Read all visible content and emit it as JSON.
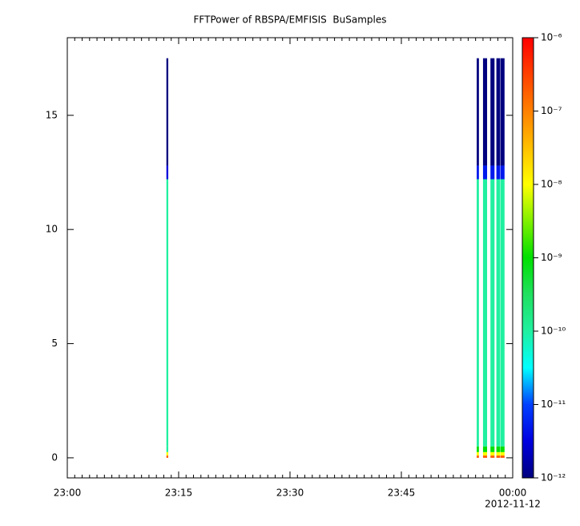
{
  "chart_data": {
    "type": "spectrogram",
    "title": "FFTPower of RBSPA/EMFISIS  BuSamples",
    "date": "2012-11-12",
    "xlim": [
      0,
      60
    ],
    "xticks": [
      {
        "value": 0,
        "label": "23:00"
      },
      {
        "value": 15,
        "label": "23:15"
      },
      {
        "value": 30,
        "label": "23:30"
      },
      {
        "value": 45,
        "label": "23:45"
      },
      {
        "value": 60,
        "label": "00:00"
      }
    ],
    "xminorticks": [
      0,
      1,
      2,
      3,
      4,
      5,
      6,
      7,
      8,
      9,
      10,
      11,
      12,
      13,
      14,
      15,
      16,
      17,
      18,
      19,
      20,
      21,
      22,
      23,
      24,
      25,
      26,
      27,
      28,
      29,
      30,
      31,
      32,
      33,
      34,
      35,
      36,
      37,
      38,
      39,
      40,
      41,
      42,
      43,
      44,
      45,
      46,
      47,
      48,
      49,
      50,
      51,
      52,
      53,
      54,
      55,
      56,
      57,
      58,
      59,
      60
    ],
    "ylim": [
      -0.88,
      18.4
    ],
    "yticks": [
      0,
      5,
      10,
      15
    ],
    "columns": [
      [
        13.35,
        13.6
      ],
      [
        55.15,
        55.45
      ],
      [
        56.0,
        56.55
      ],
      [
        57.0,
        57.55
      ],
      [
        57.8,
        58.3
      ],
      [
        58.35,
        58.9
      ]
    ],
    "y_edges": [
      0,
      0.1,
      0.25,
      0.5,
      12.2,
      12.8,
      17.5
    ],
    "z": [
      [
        2e-07,
        1e-08,
        1e-10,
        1e-10,
        3e-12,
        1e-12
      ],
      [
        2e-07,
        1e-08,
        1e-09,
        1e-10,
        5e-12,
        1e-12
      ],
      [
        2e-07,
        1e-08,
        1e-09,
        1e-10,
        5e-12,
        1e-12
      ],
      [
        2e-07,
        1e-08,
        1e-09,
        1e-10,
        5e-12,
        1e-12
      ],
      [
        2e-07,
        1e-08,
        1e-09,
        1e-10,
        5e-12,
        1e-12
      ],
      [
        2e-07,
        1e-08,
        1e-09,
        1e-10,
        5e-12,
        1e-12
      ]
    ],
    "zlim": [
      1e-12,
      1e-06
    ],
    "zlog": true,
    "zticks": [
      {
        "value": 1e-12,
        "label": "10⁻¹²"
      },
      {
        "value": 1e-11,
        "label": "10⁻¹¹"
      },
      {
        "value": 1e-10,
        "label": "10⁻¹⁰"
      },
      {
        "value": 1e-09,
        "label": "10⁻⁹"
      },
      {
        "value": 1e-08,
        "label": "10⁻⁸"
      },
      {
        "value": 1e-07,
        "label": "10⁻⁷"
      },
      {
        "value": 1e-06,
        "label": "10⁻⁶"
      }
    ],
    "colormap": [
      "#00007f",
      "#0000e0",
      "#0040ff",
      "#00ffff",
      "#20f0a0",
      "#20e060",
      "#00e000",
      "#80f000",
      "#ffff00",
      "#ffc000",
      "#ff8000",
      "#ff4000",
      "#ff0000"
    ]
  }
}
